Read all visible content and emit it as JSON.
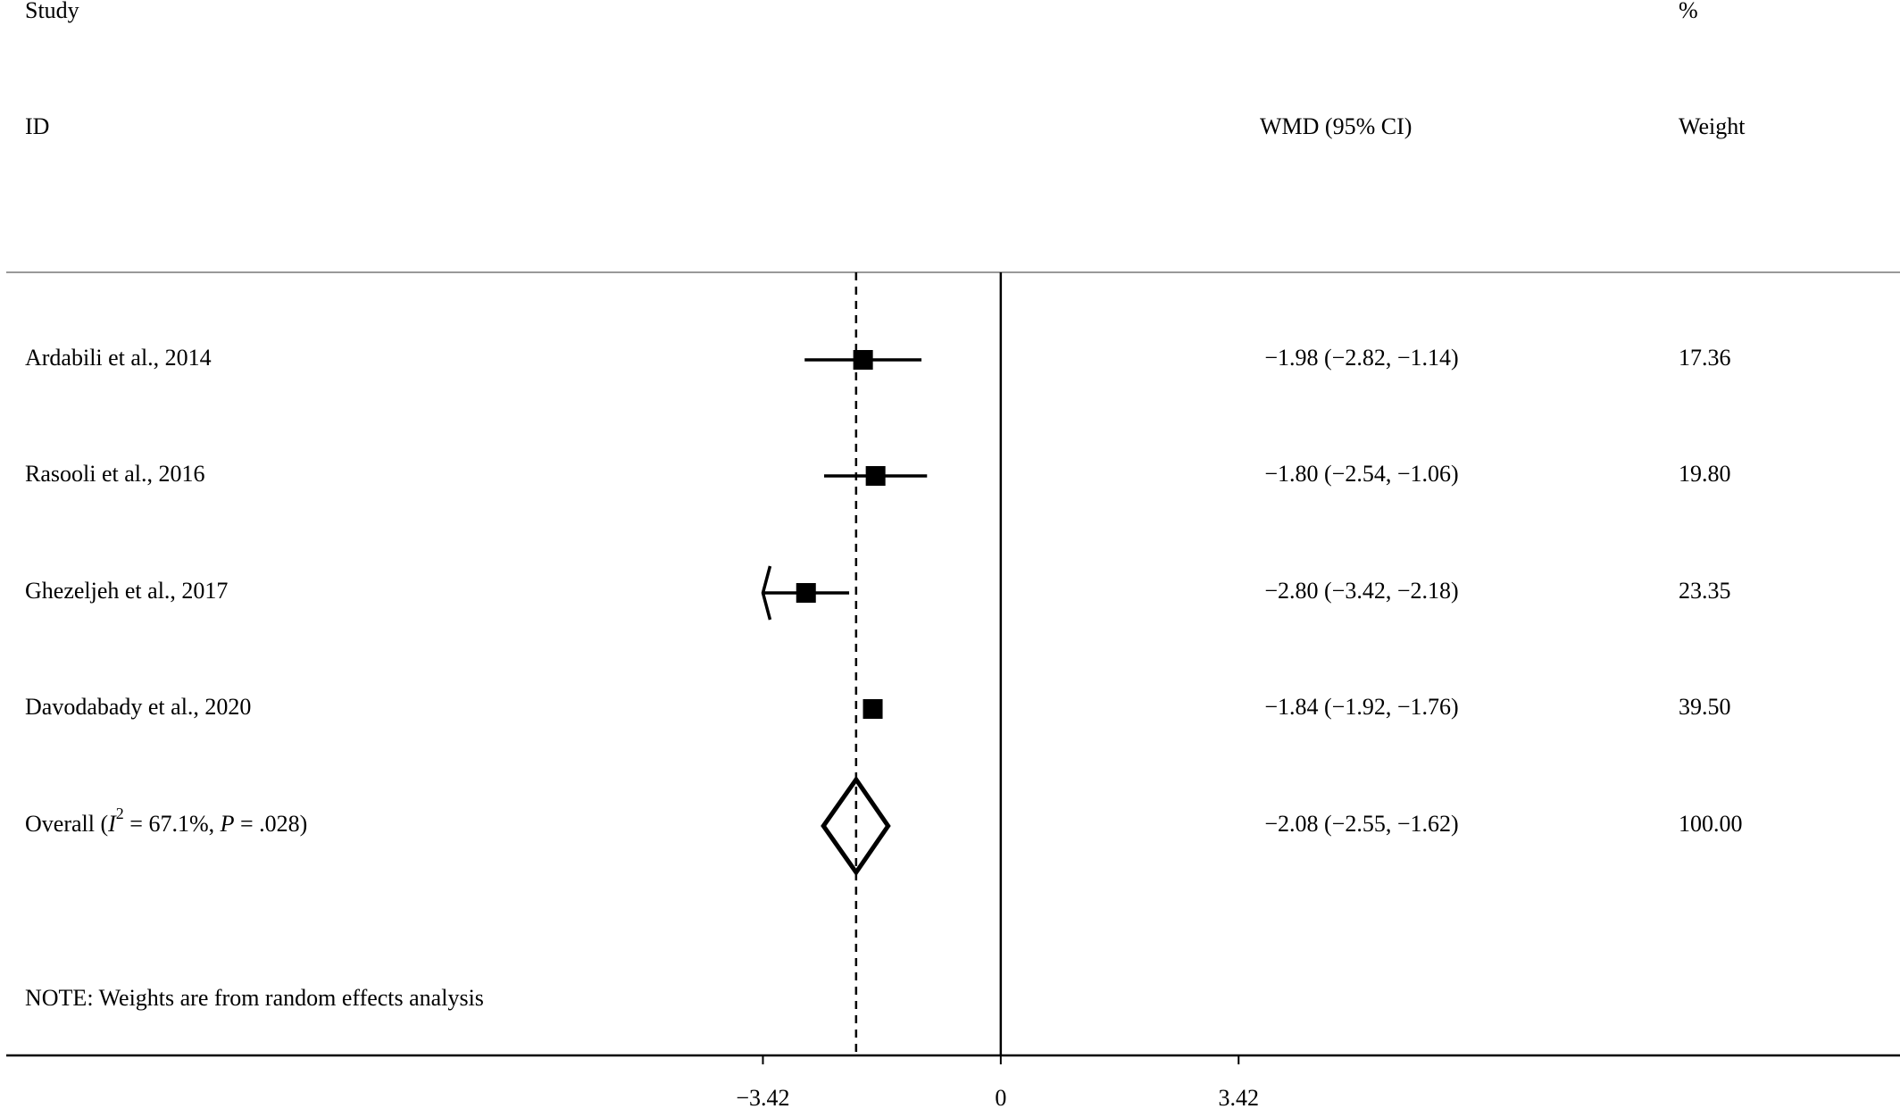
{
  "chart_data": {
    "type": "forest",
    "headers": {
      "study": "Study",
      "id": "ID",
      "effect": "WMD (95% CI)",
      "percent": "%",
      "weight": "Weight"
    },
    "categories": [
      "Ardabili et al., 2014",
      "Rasooli et al., 2016",
      "Ghezeljeh et al., 2017",
      "Davodabady et al., 2020"
    ],
    "estimates": [
      -1.98,
      -1.8,
      -2.8,
      -1.84
    ],
    "lower": [
      -2.82,
      -2.54,
      -3.42,
      -1.92
    ],
    "upper": [
      -1.14,
      -1.06,
      -2.18,
      -1.76
    ],
    "ci_labels": [
      "−1.98 (−2.82, −1.14)",
      "−1.80 (−2.54, −1.06)",
      "−2.80 (−3.42, −2.18)",
      "−1.84 (−1.92, −1.76)"
    ],
    "weights": [
      17.36,
      19.8,
      23.35,
      39.5
    ],
    "weight_labels": [
      "17.36",
      "19.80",
      "23.35",
      "39.50"
    ],
    "overall": {
      "label_parts": [
        "Overall  (",
        "I",
        "2",
        " = 67.1%, ",
        "P",
        " = .028)"
      ],
      "estimate": -2.08,
      "lower": -2.55,
      "upper": -1.62,
      "ci_label": "−2.08 (−2.55, −1.62)",
      "weight": 100,
      "weight_label": "100.00"
    },
    "note": "NOTE: Weights are from random effects analysis",
    "xlim": [
      -14.3,
      12.93
    ],
    "xticks": [
      {
        "value": -3.42,
        "label": "−3.42"
      },
      0,
      3.42
    ],
    "color": "#000000"
  }
}
